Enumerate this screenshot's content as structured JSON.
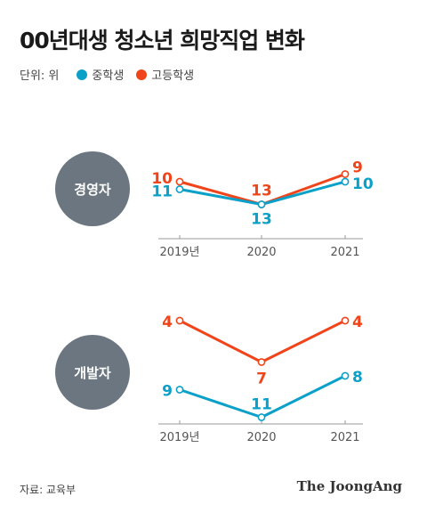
{
  "title": "00년대생 청소년 희망직업 변화",
  "legend": {
    "unit": "단위: 위",
    "items": [
      {
        "label": "중학생",
        "color": "#0aa0c8"
      },
      {
        "label": "고등학생",
        "color": "#f0441a"
      }
    ]
  },
  "chart_data": [
    {
      "type": "line",
      "title": "경영자",
      "categories": [
        "2019년",
        "2020",
        "2021"
      ],
      "y_axis": "rank (1 = top), inverted",
      "series": [
        {
          "name": "중학생",
          "values": [
            11,
            13,
            10
          ],
          "color": "#0aa0c8"
        },
        {
          "name": "고등학생",
          "values": [
            10,
            13,
            9
          ],
          "color": "#f0441a"
        }
      ]
    },
    {
      "type": "line",
      "title": "개발자",
      "categories": [
        "2019년",
        "2020",
        "2021"
      ],
      "y_axis": "rank (1 = top), inverted",
      "series": [
        {
          "name": "중학생",
          "values": [
            9,
            11,
            8
          ],
          "color": "#0aa0c8"
        },
        {
          "name": "고등학생",
          "values": [
            4,
            7,
            4
          ],
          "color": "#f0441a"
        }
      ]
    }
  ],
  "source": "자료: 교육부",
  "brand": "The JoongAng"
}
